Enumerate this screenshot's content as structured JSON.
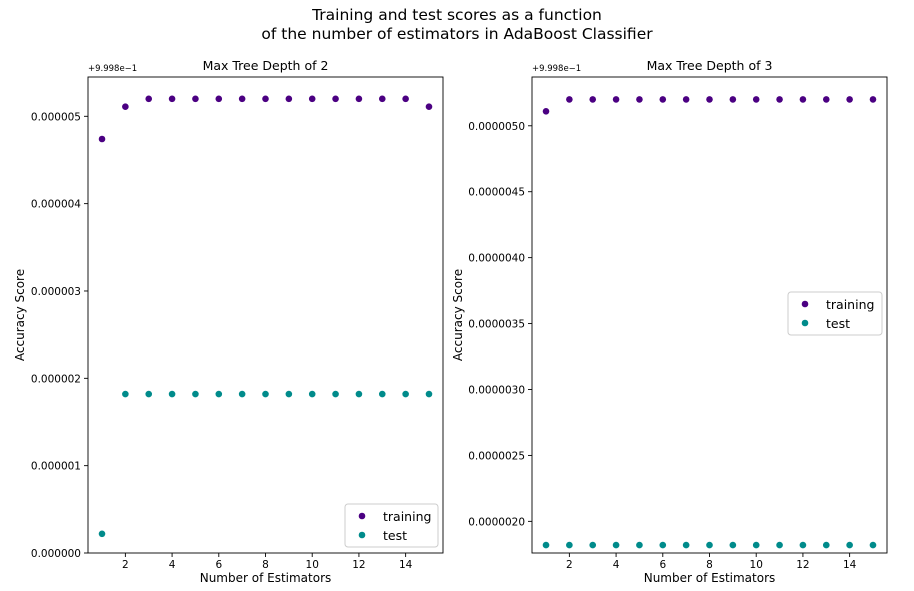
{
  "figure": {
    "suptitle": "Training and test scores as a function\nof the number of estimators in AdaBoost Classifier"
  },
  "chart_data": [
    {
      "type": "scatter",
      "title": "Max Tree Depth of 2",
      "xlabel": "Number of Estimators",
      "ylabel": "Accuracy Score",
      "offset_label": "+9.998e−1",
      "xlim": [
        0.4,
        15.6
      ],
      "ylim": [
        0.0,
        5.45e-06
      ],
      "xticks": [
        2,
        4,
        6,
        8,
        10,
        12,
        14
      ],
      "yticks": [
        0.0,
        1e-06,
        2e-06,
        3e-06,
        4e-06,
        5e-06
      ],
      "ytick_labels": [
        "0.000000",
        "0.000001",
        "0.000002",
        "0.000003",
        "0.000004",
        "0.000005"
      ],
      "legend_position": "lower-right",
      "x": [
        1,
        2,
        3,
        4,
        5,
        6,
        7,
        8,
        9,
        10,
        11,
        12,
        13,
        14,
        15
      ],
      "series": [
        {
          "name": "training",
          "color": "#4b0082",
          "values": [
            4.74e-06,
            5.11e-06,
            5.2e-06,
            5.2e-06,
            5.2e-06,
            5.2e-06,
            5.2e-06,
            5.2e-06,
            5.2e-06,
            5.2e-06,
            5.2e-06,
            5.2e-06,
            5.2e-06,
            5.2e-06,
            5.11e-06
          ]
        },
        {
          "name": "test",
          "color": "#008b8b",
          "values": [
            2.2e-07,
            1.82e-06,
            1.82e-06,
            1.82e-06,
            1.82e-06,
            1.82e-06,
            1.82e-06,
            1.82e-06,
            1.82e-06,
            1.82e-06,
            1.82e-06,
            1.82e-06,
            1.82e-06,
            1.82e-06,
            1.82e-06
          ]
        }
      ]
    },
    {
      "type": "scatter",
      "title": "Max Tree Depth of 3",
      "xlabel": "Number of Estimators",
      "ylabel": "Accuracy Score",
      "offset_label": "+9.998e−1",
      "xlim": [
        0.4,
        15.6
      ],
      "ylim": [
        1.76e-06,
        5.37e-06
      ],
      "xticks": [
        2,
        4,
        6,
        8,
        10,
        12,
        14
      ],
      "yticks": [
        2e-06,
        2.5e-06,
        3e-06,
        3.5e-06,
        4e-06,
        4.5e-06,
        5e-06
      ],
      "ytick_labels": [
        "0.0000020",
        "0.0000025",
        "0.0000030",
        "0.0000035",
        "0.0000040",
        "0.0000045",
        "0.0000050"
      ],
      "legend_position": "center-right",
      "x": [
        1,
        2,
        3,
        4,
        5,
        6,
        7,
        8,
        9,
        10,
        11,
        12,
        13,
        14,
        15
      ],
      "series": [
        {
          "name": "training",
          "color": "#4b0082",
          "values": [
            5.11e-06,
            5.2e-06,
            5.2e-06,
            5.2e-06,
            5.2e-06,
            5.2e-06,
            5.2e-06,
            5.2e-06,
            5.2e-06,
            5.2e-06,
            5.2e-06,
            5.2e-06,
            5.2e-06,
            5.2e-06,
            5.2e-06
          ]
        },
        {
          "name": "test",
          "color": "#008b8b",
          "values": [
            1.82e-06,
            1.82e-06,
            1.82e-06,
            1.82e-06,
            1.82e-06,
            1.82e-06,
            1.82e-06,
            1.82e-06,
            1.82e-06,
            1.82e-06,
            1.82e-06,
            1.82e-06,
            1.82e-06,
            1.82e-06,
            1.82e-06
          ]
        }
      ]
    }
  ]
}
